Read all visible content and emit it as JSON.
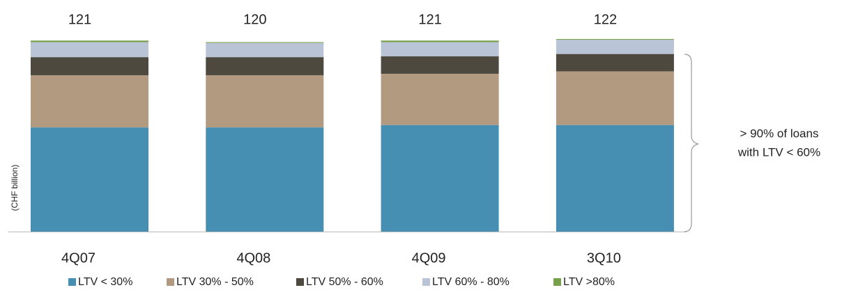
{
  "chart_data": {
    "type": "stacked-bar",
    "y_label": "(CHF billion)",
    "categories": [
      "4Q07",
      "4Q08",
      "4Q09",
      "3Q10"
    ],
    "totals": [
      121,
      120,
      121,
      122
    ],
    "series": [
      {
        "name": "LTV < 30%",
        "color": "#468fb3",
        "values": [
          66,
          66,
          67.5,
          67.5
        ]
      },
      {
        "name": "LTV 30% - 50%",
        "color": "#b29a80",
        "values": [
          33,
          33,
          32.5,
          34
        ]
      },
      {
        "name": "LTV 50% - 60%",
        "color": "#4e493f",
        "values": [
          11.5,
          11.5,
          11,
          11
        ]
      },
      {
        "name": "LTV 60% - 80%",
        "color": "#b9c4d7",
        "values": [
          9.5,
          9,
          9,
          9
        ]
      },
      {
        "name": "LTV >80%",
        "color": "#78a04b",
        "values": [
          1,
          0.5,
          1,
          0.5
        ]
      }
    ],
    "annotation": [
      "> 90% of loans",
      "with LTV < 60%"
    ]
  }
}
